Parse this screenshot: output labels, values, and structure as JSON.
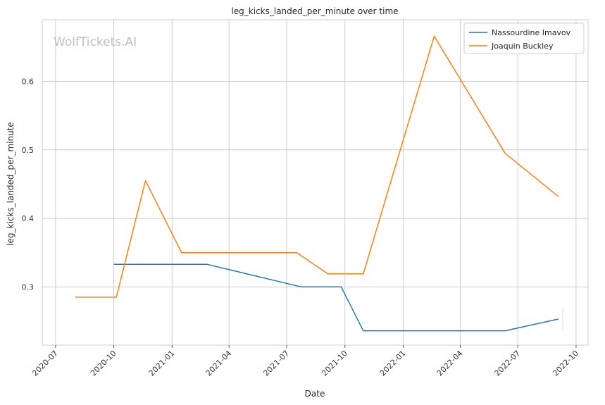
{
  "chart_data": {
    "type": "line",
    "title": "leg_kicks_landed_per_minute over time",
    "xlabel": "Date",
    "ylabel": "leg_kicks_landed_per_minute",
    "watermark": "WolfTickets.AI",
    "x_ticks": [
      "2020-07",
      "2020-10",
      "2021-01",
      "2021-04",
      "2021-07",
      "2021-10",
      "2022-01",
      "2022-04",
      "2022-07",
      "2022-10"
    ],
    "y_ticks": [
      "0.3",
      "0.4",
      "0.5",
      "0.6"
    ],
    "xlim": [
      "2020-06-10",
      "2022-10-20"
    ],
    "ylim": [
      0.215,
      0.69
    ],
    "grid": true,
    "legend_position": "top-right",
    "series": [
      {
        "name": "Nassourdine Imavov",
        "color": "#1f77b4",
        "points": [
          {
            "x": "2020-10-01",
            "y": 0.333
          },
          {
            "x": "2021-02-25",
            "y": 0.333
          },
          {
            "x": "2021-07-24",
            "y": 0.3
          },
          {
            "x": "2021-09-25",
            "y": 0.3
          },
          {
            "x": "2021-10-30",
            "y": 0.236
          },
          {
            "x": "2022-06-11",
            "y": 0.236
          },
          {
            "x": "2022-09-03",
            "y": 0.253
          }
        ]
      },
      {
        "name": "Joaquin Buckley",
        "color": "#ff7f0e",
        "points": [
          {
            "x": "2020-08-01",
            "y": 0.285
          },
          {
            "x": "2020-10-05",
            "y": 0.285
          },
          {
            "x": "2020-11-20",
            "y": 0.455
          },
          {
            "x": "2021-01-16",
            "y": 0.35
          },
          {
            "x": "2021-07-17",
            "y": 0.35
          },
          {
            "x": "2021-09-04",
            "y": 0.319
          },
          {
            "x": "2021-10-30",
            "y": 0.319
          },
          {
            "x": "2022-02-19",
            "y": 0.666
          },
          {
            "x": "2022-06-11",
            "y": 0.495
          },
          {
            "x": "2022-09-03",
            "y": 0.432
          }
        ]
      }
    ]
  }
}
